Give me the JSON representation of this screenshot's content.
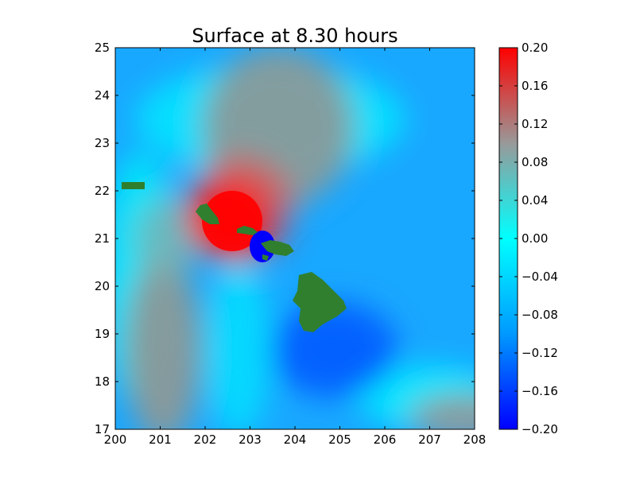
{
  "chart_data": {
    "type": "heatmap",
    "title": "Surface at 8.30 hours",
    "xlabel": "",
    "ylabel": "",
    "xlim": [
      200,
      208
    ],
    "ylim": [
      17,
      25
    ],
    "x_ticks": [
      "200",
      "201",
      "202",
      "203",
      "204",
      "205",
      "206",
      "207",
      "208"
    ],
    "y_ticks": [
      "17",
      "18",
      "19",
      "20",
      "21",
      "22",
      "23",
      "24",
      "25"
    ],
    "grid": false,
    "colorbar": {
      "vmin": -0.2,
      "vmax": 0.2,
      "ticks": [
        "0.20",
        "0.16",
        "0.12",
        "0.08",
        "0.04",
        "0.00",
        "−0.04",
        "−0.08",
        "−0.12",
        "−0.16",
        "−0.20"
      ],
      "colormap_stops": [
        {
          "value": -0.2,
          "color": "#0000ff"
        },
        {
          "value": -0.1,
          "color": "#0099ff"
        },
        {
          "value": 0.0,
          "color": "#00ffff"
        },
        {
          "value": 0.1,
          "color": "#999999"
        },
        {
          "value": 0.2,
          "color": "#ff0000"
        }
      ]
    },
    "land_color": "#2f7f2f",
    "features": [
      {
        "label": "positive peak",
        "lon": 202.6,
        "lat": 21.45,
        "value": 0.2
      },
      {
        "label": "negative trough",
        "lon": 204.7,
        "lat": 18.6,
        "value": -0.13
      },
      {
        "label": "negative core",
        "lon": 203.25,
        "lat": 20.95,
        "value": -0.2
      },
      {
        "label": "positive band NW",
        "lon": 202.9,
        "lat": 23.4,
        "value": 0.07
      },
      {
        "label": "positive band SW",
        "lon": 200.9,
        "lat": 18.3,
        "value": 0.06
      },
      {
        "label": "positive band SE",
        "lon": 207.5,
        "lat": 17.3,
        "value": 0.06
      }
    ],
    "land": [
      {
        "name": "Kauai",
        "lon": 202.3,
        "lat": 21.45
      },
      {
        "name": "Oahu",
        "lon": 203.15,
        "lat": 21.1
      },
      {
        "name": "Maui",
        "lon": 203.7,
        "lat": 20.78
      },
      {
        "name": "Hawaii",
        "lon": 204.45,
        "lat": 19.6
      },
      {
        "name": "Niihau",
        "lon": 200.35,
        "lat": 22.1
      }
    ]
  }
}
